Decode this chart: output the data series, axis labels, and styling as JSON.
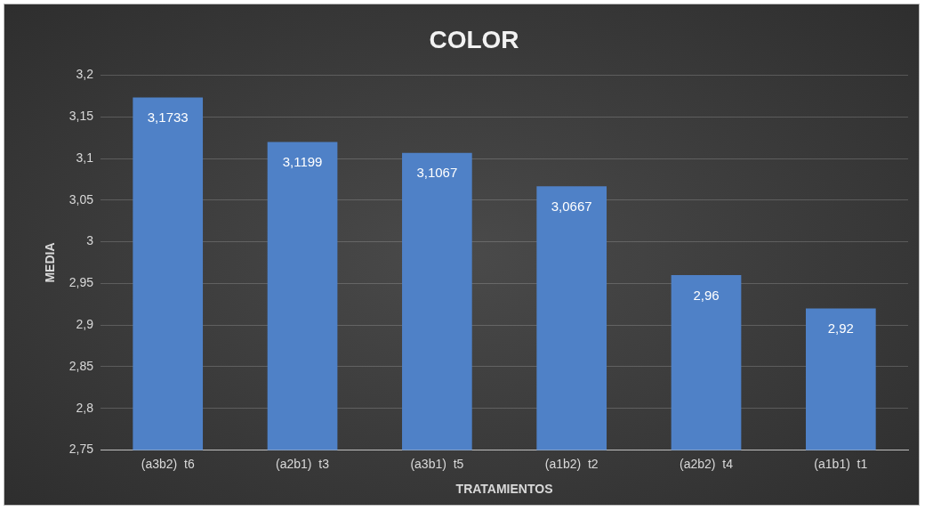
{
  "chart_data": {
    "type": "bar",
    "title": "COLOR",
    "xlabel": "TRATAMIENTOS",
    "ylabel": "MEDIA",
    "categories": [
      "(a3b2)  t6",
      "(a2b1)  t3",
      "(a3b1)  t5",
      "(a1b2)  t2",
      "(a2b2)  t4",
      "(a1b1)  t1"
    ],
    "values": [
      3.1733,
      3.1199,
      3.1067,
      3.0667,
      2.96,
      2.92
    ],
    "value_labels": [
      "3,1733",
      "3,1199",
      "3,1067",
      "3,0667",
      "2,96",
      "2,92"
    ],
    "color": "#4f81c7",
    "ylim": [
      2.75,
      3.2
    ],
    "yticks": [
      {
        "value": 2.75,
        "label": "2,75"
      },
      {
        "value": 2.8,
        "label": "2,8"
      },
      {
        "value": 2.85,
        "label": "2,85"
      },
      {
        "value": 2.9,
        "label": "2,9"
      },
      {
        "value": 2.95,
        "label": "2,95"
      },
      {
        "value": 3,
        "label": "3"
      },
      {
        "value": 3.05,
        "label": "3,05"
      },
      {
        "value": 3.1,
        "label": "3,1"
      },
      {
        "value": 3.15,
        "label": "3,15"
      },
      {
        "value": 3.2,
        "label": "3,2"
      }
    ],
    "grid": "y",
    "legend": false
  }
}
